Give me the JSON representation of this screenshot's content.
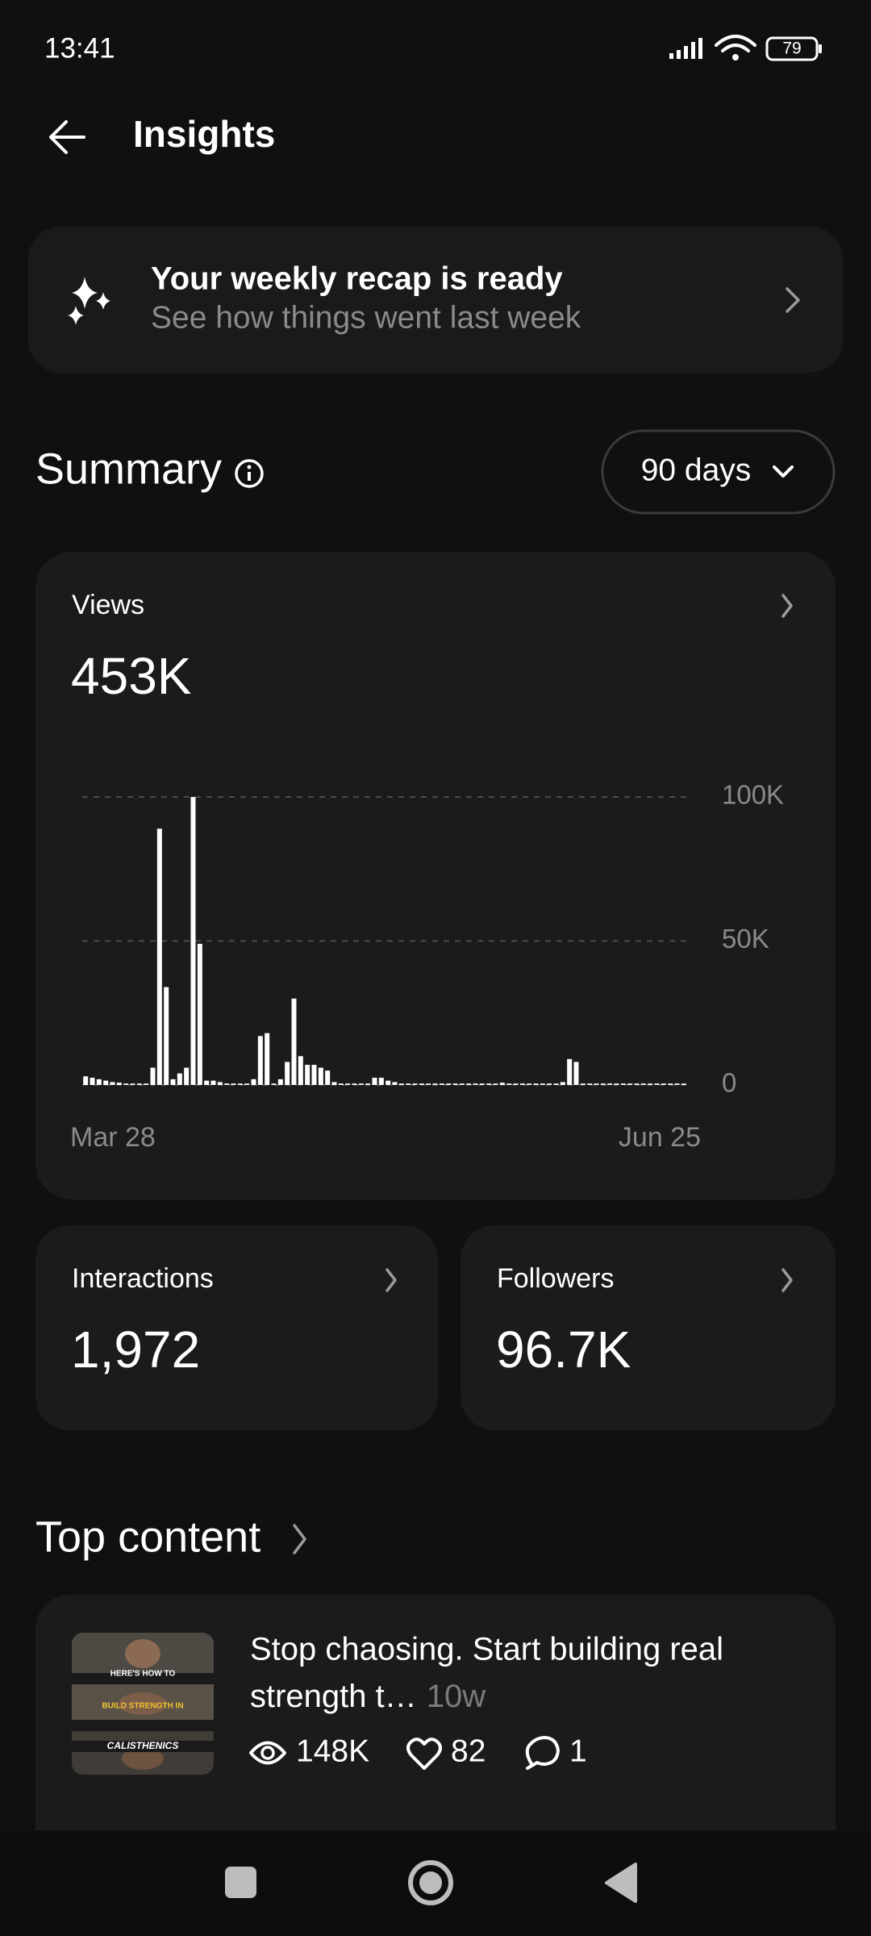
{
  "status_bar": {
    "time": "13:41",
    "battery": "79"
  },
  "header": {
    "title": "Insights"
  },
  "recap": {
    "title": "Your weekly recap is ready",
    "subtitle": "See how things went last week"
  },
  "summary": {
    "title": "Summary",
    "period": "90 days"
  },
  "views": {
    "label": "Views",
    "total": "453K"
  },
  "chart_data": {
    "type": "bar",
    "color": "#ffffff",
    "categories": [
      "Mar 28",
      null,
      null,
      null,
      null,
      null,
      null,
      null,
      null,
      null,
      null,
      null,
      null,
      null,
      null,
      null,
      null,
      null,
      null,
      null,
      null,
      null,
      null,
      null,
      null,
      null,
      null,
      null,
      null,
      null,
      null,
      null,
      null,
      null,
      null,
      null,
      null,
      null,
      null,
      null,
      null,
      null,
      null,
      null,
      null,
      null,
      null,
      null,
      null,
      null,
      null,
      null,
      null,
      null,
      null,
      null,
      null,
      null,
      null,
      null,
      null,
      null,
      null,
      null,
      null,
      null,
      null,
      null,
      null,
      null,
      null,
      null,
      null,
      null,
      null,
      null,
      null,
      null,
      null,
      null,
      null,
      null,
      null,
      null,
      null,
      null,
      null,
      null,
      null,
      "Jun 25"
    ],
    "values": [
      3000,
      2500,
      2000,
      1500,
      1000,
      800,
      500,
      500,
      500,
      500,
      6000,
      89000,
      34000,
      2000,
      4000,
      6000,
      100000,
      49000,
      1500,
      1500,
      1000,
      500,
      500,
      500,
      500,
      2000,
      17000,
      18000,
      500,
      2000,
      8000,
      30000,
      10000,
      7000,
      7000,
      6000,
      5000,
      1000,
      500,
      500,
      500,
      500,
      500,
      2500,
      2500,
      1500,
      1000,
      500,
      500,
      500,
      500,
      500,
      500,
      500,
      500,
      500,
      500,
      500,
      500,
      500,
      500,
      500,
      800,
      500,
      500,
      500,
      500,
      500,
      500,
      500,
      500,
      1000,
      9000,
      8000,
      500,
      500,
      500,
      500,
      500,
      500,
      500,
      500,
      500,
      500,
      500,
      500,
      500,
      500,
      500,
      500
    ],
    "ylim": [
      0,
      100000
    ],
    "yticks": [
      {
        "value": 0,
        "label": "0"
      },
      {
        "value": 50000,
        "label": "50K"
      },
      {
        "value": 100000,
        "label": "100K"
      }
    ],
    "grid": true
  },
  "interactions": {
    "label": "Interactions",
    "value": "1,972"
  },
  "followers": {
    "label": "Followers",
    "value": "96.7K"
  },
  "top_content": {
    "title": "Top content",
    "items": [
      {
        "thumbnail_texts": [
          "HERE'S HOW TO",
          "BUILD STRENGTH IN",
          "CALISTHENICS"
        ],
        "title_lines": [
          "Stop chaosing. Start building real",
          "strength t…"
        ],
        "age": "10w",
        "views": "148K",
        "likes": "82",
        "comments": "1"
      }
    ]
  }
}
